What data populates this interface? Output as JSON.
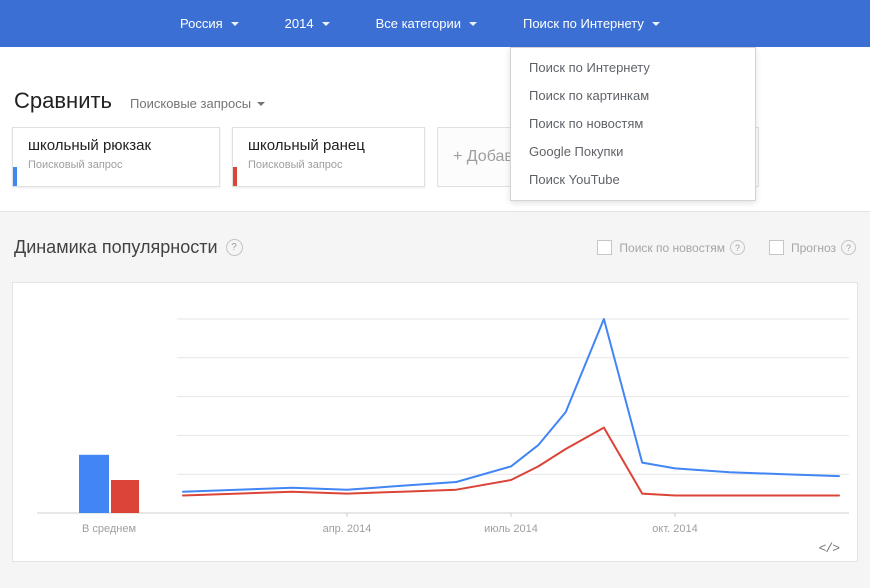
{
  "header": {
    "menus": [
      {
        "label": "Россия"
      },
      {
        "label": "2014"
      },
      {
        "label": "Все категории"
      },
      {
        "label": "Поиск по Интернету"
      }
    ]
  },
  "dropdown": {
    "items": [
      {
        "label": "Поиск по Интернету"
      },
      {
        "label": "Поиск по картинкам"
      },
      {
        "label": "Поиск по новостям"
      },
      {
        "label": "Google Покупки"
      },
      {
        "label": "Поиск YouTube"
      }
    ]
  },
  "compare": {
    "title": "Сравнить",
    "filter_label": "Поисковые запросы",
    "cards": [
      {
        "term": "школьный рюкзак",
        "subtitle": "Поисковый запрос",
        "color": "#4285f4"
      },
      {
        "term": "школьный ранец",
        "subtitle": "Поисковый запрос",
        "color": "#db4437"
      }
    ],
    "add_card_label": "+ Добав"
  },
  "trends_section": {
    "title": "Динамика популярности",
    "help_icon": "?",
    "toggles": [
      {
        "label": "Поиск по новостям"
      },
      {
        "label": "Прогноз"
      }
    ]
  },
  "embed_label": "</>",
  "chart_data": {
    "type": "line",
    "title": "Динамика популярности",
    "ylim": [
      0,
      100
    ],
    "gridlines": [
      20,
      40,
      60,
      80,
      100
    ],
    "grid_on": true,
    "x_range_months": [
      0,
      12
    ],
    "x_ticks": [
      {
        "month": 3,
        "label": "апр. 2014"
      },
      {
        "month": 6,
        "label": "июль 2014"
      },
      {
        "month": 9,
        "label": "окт. 2014"
      }
    ],
    "bar_group_label": "В среднем",
    "series": [
      {
        "name": "школьный рюкзак",
        "color": "#4285f4",
        "average": 30,
        "points": [
          [
            0,
            11
          ],
          [
            1,
            12
          ],
          [
            2,
            13
          ],
          [
            3,
            12
          ],
          [
            4,
            14
          ],
          [
            5,
            16
          ],
          [
            6,
            24
          ],
          [
            6.5,
            35
          ],
          [
            7,
            52
          ],
          [
            7.7,
            100
          ],
          [
            8.4,
            26
          ],
          [
            9,
            23
          ],
          [
            10,
            21
          ],
          [
            11,
            20
          ],
          [
            12,
            19
          ]
        ]
      },
      {
        "name": "школьный ранец",
        "color": "#db4437",
        "average": 17,
        "points": [
          [
            0,
            9
          ],
          [
            1,
            10
          ],
          [
            2,
            11
          ],
          [
            3,
            10
          ],
          [
            4,
            11
          ],
          [
            5,
            12
          ],
          [
            6,
            17
          ],
          [
            6.5,
            24
          ],
          [
            7,
            33
          ],
          [
            7.7,
            44
          ],
          [
            8.4,
            10
          ],
          [
            9,
            9
          ],
          [
            10,
            9
          ],
          [
            11,
            9
          ],
          [
            12,
            9
          ]
        ]
      }
    ]
  }
}
